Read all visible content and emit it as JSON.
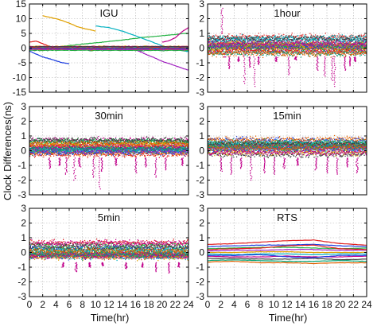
{
  "figure": {
    "ylabel": "Clock Differences(ns)",
    "xlabel": "Time(hr)"
  },
  "chart_data": [
    {
      "type": "line",
      "title": "IGU",
      "ylim": [
        -15,
        15
      ],
      "yticks": [
        -15,
        -10,
        -5,
        0,
        5,
        10,
        15
      ],
      "xlim": [
        0,
        24
      ],
      "xticks": [
        0,
        2,
        4,
        6,
        8,
        10,
        12,
        14,
        16,
        18,
        20,
        22,
        24
      ],
      "grid": true,
      "colors": [
        "#e02020",
        "#2040e0",
        "#20b040",
        "#a020c0",
        "#e0a000",
        "#00b0c0",
        "#c0008a",
        "#404040",
        "#00a070",
        "#e06000"
      ],
      "series": [
        {
          "x": [
            0,
            1,
            2,
            3,
            4,
            5,
            6,
            7,
            8,
            9,
            10
          ],
          "values": [
            2.0,
            2.4,
            1.5,
            0.6,
            -0.1,
            -0.3,
            0.0,
            -0.2,
            0.0,
            0.4,
            0.1
          ]
        },
        {
          "x": [
            0,
            1,
            2,
            3,
            4,
            5,
            6
          ],
          "values": [
            -1.0,
            -2.0,
            -3.0,
            -3.6,
            -4.3,
            -5.0,
            -5.3
          ]
        },
        {
          "x": [
            3,
            5,
            7,
            9,
            11,
            13,
            15,
            17,
            19,
            21,
            23,
            24
          ],
          "values": [
            0.2,
            0.6,
            1.1,
            1.6,
            2.0,
            2.5,
            3.0,
            3.6,
            4.0,
            4.4,
            4.9,
            5.0
          ]
        },
        {
          "x": [
            15,
            16,
            17,
            18,
            19,
            20,
            21,
            22,
            23,
            24
          ],
          "values": [
            0.0,
            -0.6,
            -1.5,
            -2.5,
            -3.4,
            -4.5,
            -5.2,
            -6.0,
            -6.8,
            -7.5
          ]
        },
        {
          "x": [
            2,
            3,
            4,
            5,
            6,
            7,
            8,
            9,
            10
          ],
          "values": [
            11.0,
            10.5,
            10.0,
            9.3,
            8.5,
            7.5,
            6.8,
            6.3,
            5.8
          ]
        },
        {
          "x": [
            10,
            12,
            14,
            16,
            18,
            20,
            22,
            23,
            24
          ],
          "values": [
            7.5,
            7.0,
            5.8,
            4.2,
            2.5,
            0.8,
            -0.5,
            -0.8,
            -1.2
          ]
        },
        {
          "x": [
            20,
            21,
            22,
            23,
            24
          ],
          "values": [
            2.0,
            2.5,
            3.5,
            5.5,
            7.0
          ]
        }
      ]
    },
    {
      "type": "scatter",
      "title": "1hour",
      "ylim": [
        -3,
        3
      ],
      "yticks": [
        -3,
        -2,
        -1,
        0,
        1,
        2,
        3
      ],
      "xlim": [
        0,
        24
      ],
      "xticks": [
        0,
        2,
        4,
        6,
        8,
        10,
        12,
        14,
        16,
        18,
        20,
        22,
        24
      ],
      "grid": true,
      "band": [
        -0.6,
        1.0
      ],
      "spikes": [
        [
          2.1,
          2.7
        ],
        [
          2.5,
          -0.6
        ],
        [
          3.2,
          -1.4
        ],
        [
          4.6,
          -0.9
        ],
        [
          5.5,
          -2.4
        ],
        [
          6.3,
          -1.3
        ],
        [
          7.0,
          -2.6
        ],
        [
          7.6,
          -1.1
        ],
        [
          10.3,
          -0.9
        ],
        [
          12.2,
          -1.8
        ],
        [
          13.2,
          -0.8
        ],
        [
          16.5,
          -1.5
        ],
        [
          17.6,
          -1.9
        ],
        [
          18.7,
          -2.2
        ],
        [
          19.1,
          -2.6
        ],
        [
          20.6,
          -1.5
        ],
        [
          21.4,
          -1.2
        ],
        [
          22.2,
          -0.9
        ]
      ],
      "colors": [
        "#e02020",
        "#2040e0",
        "#20b040",
        "#a020c0",
        "#e0a000",
        "#00b0c0",
        "#c0008a",
        "#404040",
        "#00a070",
        "#e06000"
      ]
    },
    {
      "type": "scatter",
      "title": "30min",
      "ylim": [
        -3,
        3
      ],
      "yticks": [
        -3,
        -2,
        -1,
        0,
        1,
        2,
        3
      ],
      "xlim": [
        0,
        24
      ],
      "xticks": [
        0,
        2,
        4,
        6,
        8,
        10,
        12,
        14,
        16,
        18,
        20,
        22,
        24
      ],
      "grid": true,
      "band": [
        -0.5,
        1.0
      ],
      "spikes": [
        [
          3.0,
          -1.2
        ],
        [
          4.5,
          -1.0
        ],
        [
          5.5,
          -1.6
        ],
        [
          6.7,
          -2.0
        ],
        [
          7.5,
          -1.1
        ],
        [
          9.6,
          -1.8
        ],
        [
          10.5,
          -2.6
        ],
        [
          10.9,
          -1.4
        ],
        [
          13.0,
          -1.0
        ],
        [
          16.0,
          -1.5
        ],
        [
          17.5,
          -1.1
        ],
        [
          19.0,
          -1.8
        ],
        [
          20.5,
          -1.3
        ],
        [
          23.0,
          -1.0
        ]
      ],
      "colors": [
        "#e02020",
        "#2040e0",
        "#20b040",
        "#a020c0",
        "#e0a000",
        "#00b0c0",
        "#c0008a",
        "#404040",
        "#00a070",
        "#e06000"
      ]
    },
    {
      "type": "scatter",
      "title": "15min",
      "ylim": [
        -3,
        3
      ],
      "yticks": [
        -3,
        -2,
        -1,
        0,
        1,
        2,
        3
      ],
      "xlim": [
        0,
        24
      ],
      "xticks": [
        0,
        2,
        4,
        6,
        8,
        10,
        12,
        14,
        16,
        18,
        20,
        22,
        24
      ],
      "grid": true,
      "band": [
        -0.5,
        1.0
      ],
      "spikes": [
        [
          2.0,
          -1.4
        ],
        [
          3.5,
          -1.6
        ],
        [
          5.0,
          -1.2
        ],
        [
          6.5,
          -2.0
        ],
        [
          8.5,
          -1.5
        ],
        [
          10.0,
          -1.6
        ],
        [
          11.5,
          -1.2
        ],
        [
          13.5,
          -1.0
        ],
        [
          16.3,
          -1.3
        ],
        [
          18.0,
          -1.5
        ],
        [
          19.5,
          -1.6
        ],
        [
          21.0,
          -1.1
        ],
        [
          22.5,
          -1.5
        ]
      ],
      "colors": [
        "#e02020",
        "#2040e0",
        "#20b040",
        "#a020c0",
        "#e0a000",
        "#00b0c0",
        "#c0008a",
        "#404040",
        "#00a070",
        "#e06000"
      ]
    },
    {
      "type": "scatter",
      "title": "5min",
      "ylim": [
        -3,
        3
      ],
      "yticks": [
        -3,
        -2,
        -1,
        0,
        1,
        2,
        3
      ],
      "xlim": [
        0,
        24
      ],
      "xticks": [
        0,
        2,
        4,
        6,
        8,
        10,
        12,
        14,
        16,
        18,
        20,
        22,
        24
      ],
      "grid": true,
      "band": [
        -0.7,
        0.9
      ],
      "spikes": [
        [
          5.0,
          -1.0
        ],
        [
          7.0,
          -1.3
        ],
        [
          9.0,
          -1.0
        ],
        [
          11.0,
          -0.9
        ],
        [
          14.5,
          -1.1
        ],
        [
          17.0,
          -1.0
        ],
        [
          19.0,
          -1.3
        ],
        [
          21.0,
          -1.4
        ],
        [
          22.5,
          -1.0
        ]
      ],
      "colors": [
        "#e02020",
        "#2040e0",
        "#20b040",
        "#a020c0",
        "#e0a000",
        "#00b0c0",
        "#c0008a",
        "#404040",
        "#00a070",
        "#e06000"
      ]
    },
    {
      "type": "line",
      "title": "RTS",
      "ylim": [
        -3,
        3
      ],
      "yticks": [
        -3,
        -2,
        -1,
        0,
        1,
        2,
        3
      ],
      "xlim": [
        0,
        24
      ],
      "xticks": [
        0,
        2,
        4,
        6,
        8,
        10,
        12,
        14,
        16,
        18,
        20,
        22,
        24
      ],
      "grid": true,
      "colors": [
        "#e02020",
        "#2040e0",
        "#20b040",
        "#a020c0",
        "#e0a000",
        "#00b0c0",
        "#c0008a",
        "#404040",
        "#00a070",
        "#e06000"
      ],
      "series": [
        {
          "x": [
            0,
            4,
            8,
            12,
            16,
            20,
            24
          ],
          "values": [
            0.55,
            0.6,
            0.7,
            0.8,
            0.85,
            0.6,
            0.5
          ]
        },
        {
          "x": [
            0,
            4,
            8,
            12,
            16,
            20,
            24
          ],
          "values": [
            0.4,
            0.45,
            0.5,
            0.5,
            0.55,
            0.45,
            0.4
          ]
        },
        {
          "x": [
            0,
            4,
            8,
            12,
            16,
            20,
            24
          ],
          "values": [
            0.25,
            0.3,
            0.35,
            0.35,
            0.3,
            0.25,
            0.3
          ]
        },
        {
          "x": [
            0,
            4,
            8,
            12,
            16,
            20,
            24
          ],
          "values": [
            0.1,
            0.15,
            0.15,
            0.2,
            0.2,
            0.15,
            0.15
          ]
        },
        {
          "x": [
            0,
            4,
            8,
            12,
            16,
            20,
            24
          ],
          "values": [
            0.0,
            0.0,
            0.05,
            0.05,
            0.0,
            0.0,
            0.0
          ]
        },
        {
          "x": [
            0,
            4,
            8,
            12,
            16,
            20,
            24
          ],
          "values": [
            -0.1,
            -0.15,
            -0.1,
            -0.1,
            -0.15,
            -0.1,
            -0.1
          ]
        },
        {
          "x": [
            0,
            4,
            8,
            12,
            16,
            20,
            24
          ],
          "values": [
            -0.25,
            -0.3,
            -0.3,
            -0.25,
            -0.3,
            -0.3,
            -0.25
          ]
        },
        {
          "x": [
            0,
            4,
            8,
            12,
            16,
            20,
            24
          ],
          "values": [
            -0.4,
            -0.4,
            -0.45,
            -0.45,
            -0.4,
            -0.5,
            -0.45
          ]
        },
        {
          "x": [
            0,
            4,
            8,
            12,
            16,
            20,
            24
          ],
          "values": [
            -0.55,
            -0.5,
            -0.55,
            -0.6,
            -0.6,
            -0.55,
            -0.6
          ]
        },
        {
          "x": [
            0,
            4,
            8,
            12,
            16,
            20,
            24
          ],
          "values": [
            -0.65,
            -0.6,
            -0.7,
            -0.7,
            -0.75,
            -0.7,
            -0.7
          ]
        },
        {
          "x": [
            0,
            4,
            8,
            12,
            16,
            20,
            24
          ],
          "values": [
            0.2,
            0.25,
            0.3,
            0.45,
            0.5,
            0.25,
            0.2
          ]
        },
        {
          "x": [
            0,
            4,
            8,
            12,
            16,
            20,
            24
          ],
          "values": [
            -0.2,
            -0.2,
            -0.15,
            -0.3,
            -0.35,
            -0.2,
            -0.2
          ]
        }
      ]
    }
  ]
}
